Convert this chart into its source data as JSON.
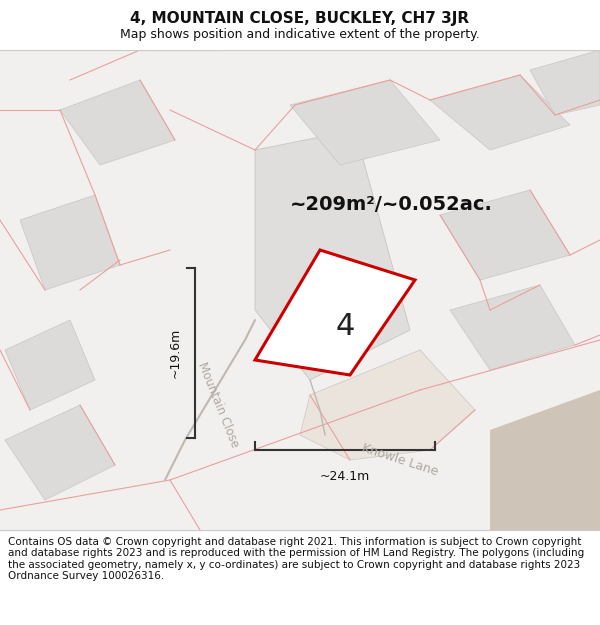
{
  "title": "4, MOUNTAIN CLOSE, BUCKLEY, CH7 3JR",
  "subtitle": "Map shows position and indicative extent of the property.",
  "footer": "Contains OS data © Crown copyright and database right 2021. This information is subject to Crown copyright and database rights 2023 and is reproduced with the permission of HM Land Registry. The polygons (including the associated geometry, namely x, y co-ordinates) are subject to Crown copyright and database rights 2023 Ordnance Survey 100026316.",
  "area_label": "~209m²/~0.052ac.",
  "plot_number": "4",
  "dim_width": "~24.1m",
  "dim_height": "~19.6m",
  "road_label1": "Mountain Close",
  "road_label2": "Knowle Lane",
  "map_bg": "#f2f0ee",
  "plot_outline_color": "#cc0000",
  "dim_color": "#333333",
  "pink_line_color": "#e8a0a0",
  "gray_block_color": "#dddbd9",
  "gray_block_edge": "#c8c6c4",
  "tan_color": "#cfc4b8",
  "title_fontsize": 11,
  "subtitle_fontsize": 9,
  "footer_fontsize": 7.5
}
